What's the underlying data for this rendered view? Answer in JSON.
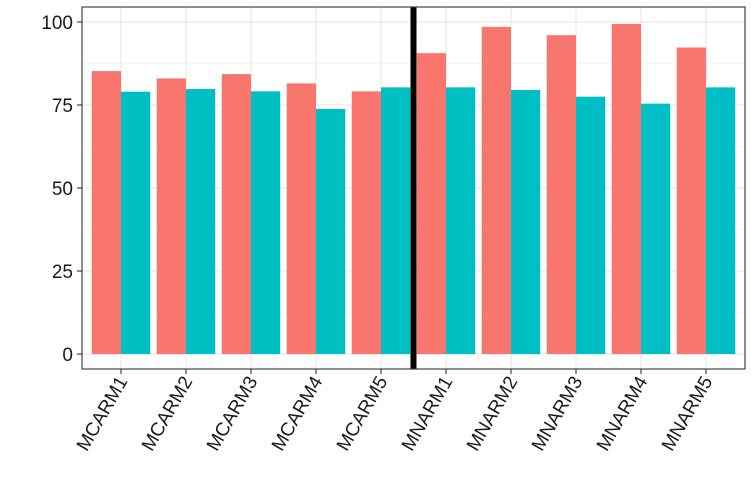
{
  "chart_data": {
    "type": "bar",
    "title": "",
    "xlabel": "",
    "ylabel": "",
    "categories": [
      "MCARM1",
      "MCARM2",
      "MCARM3",
      "MCARM4",
      "MCARM5",
      "MNARM1",
      "MNARM2",
      "MNARM3",
      "MNARM4",
      "MNARM5"
    ],
    "series": [
      {
        "color": "#F8766D",
        "values": [
          85.2,
          83.0,
          84.3,
          81.5,
          79.1,
          90.6,
          98.5,
          96.0,
          99.4,
          92.3
        ]
      },
      {
        "color": "#00BFC4",
        "values": [
          79.0,
          79.8,
          79.1,
          73.8,
          80.3,
          80.3,
          79.5,
          77.5,
          75.4,
          80.3
        ]
      }
    ],
    "ylim": [
      -4.5,
      104.5
    ],
    "yticks": [
      0,
      25,
      50,
      75,
      100
    ],
    "ytick_labels": [
      "0",
      "25",
      "50",
      "75",
      "100"
    ],
    "grid": true,
    "legend": "none",
    "divider_after_category": "MCARM5",
    "divider_color": "#000000"
  }
}
